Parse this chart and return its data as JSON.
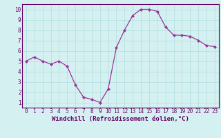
{
  "x": [
    0,
    1,
    2,
    3,
    4,
    5,
    6,
    7,
    8,
    9,
    10,
    11,
    12,
    13,
    14,
    15,
    16,
    17,
    18,
    19,
    20,
    21,
    22,
    23
  ],
  "y": [
    5.0,
    5.4,
    5.0,
    4.7,
    5.0,
    4.5,
    2.7,
    1.5,
    1.3,
    1.0,
    2.3,
    6.3,
    8.0,
    9.4,
    10.0,
    10.0,
    9.8,
    8.3,
    7.5,
    7.5,
    7.4,
    7.0,
    6.5,
    6.4
  ],
  "line_color": "#993399",
  "marker": "D",
  "marker_size": 2.0,
  "linewidth": 0.9,
  "xlabel": "Windchill (Refroidissement éolien,°C)",
  "xlabel_fontsize": 6.5,
  "xlim": [
    -0.5,
    23.5
  ],
  "ylim": [
    0.5,
    10.5
  ],
  "yticks": [
    1,
    2,
    3,
    4,
    5,
    6,
    7,
    8,
    9,
    10
  ],
  "xticks": [
    0,
    1,
    2,
    3,
    4,
    5,
    6,
    7,
    8,
    9,
    10,
    11,
    12,
    13,
    14,
    15,
    16,
    17,
    18,
    19,
    20,
    21,
    22,
    23
  ],
  "grid_color": "#b0dede",
  "bg_color": "#d4f0f0",
  "tick_fontsize": 5.5,
  "tick_color": "#660066",
  "spine_color": "#660066"
}
